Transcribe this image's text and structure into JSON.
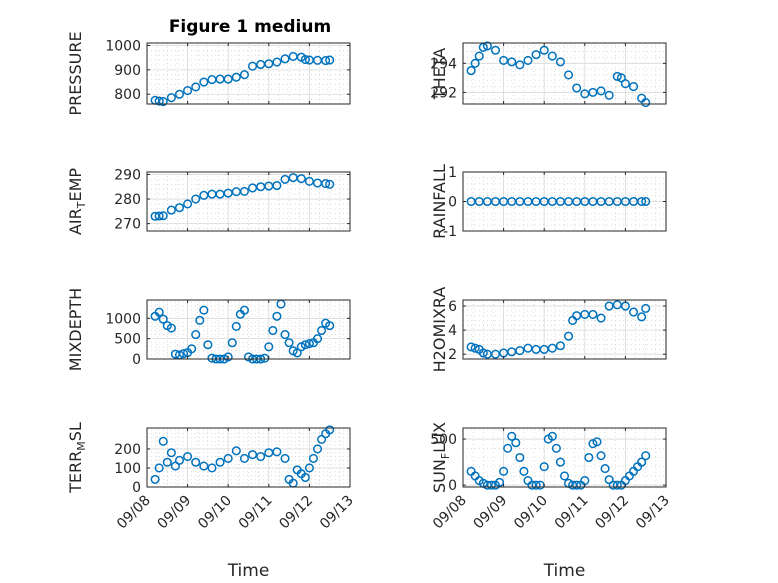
{
  "figure_title": "Figure 1 medium",
  "marker_color": "#0072BD",
  "x_axis": {
    "label": "Time",
    "ticks": [
      0,
      1,
      2,
      3,
      4,
      5
    ],
    "tick_labels": [
      "09/08",
      "09/09",
      "09/10",
      "09/11",
      "09/12",
      "09/13"
    ],
    "range": [
      0,
      5
    ]
  },
  "chart_data": [
    {
      "type": "scatter",
      "title": "Figure 1 medium",
      "ylabel_parts": [
        "PRESSURE"
      ],
      "ylim": [
        760,
        1010
      ],
      "yticks": [
        800,
        900,
        1000
      ],
      "ytick_labels": [
        "800",
        "900",
        "1000"
      ],
      "series": [
        {
          "name": "PRESSURE",
          "x": [
            0.2,
            0.3,
            0.4,
            0.6,
            0.8,
            1.0,
            1.2,
            1.4,
            1.6,
            1.8,
            2.0,
            2.2,
            2.4,
            2.6,
            2.8,
            3.0,
            3.2,
            3.4,
            3.6,
            3.8,
            3.9,
            4.0,
            4.2,
            4.4,
            4.5
          ],
          "y": [
            775,
            772,
            770,
            786,
            800,
            815,
            830,
            850,
            860,
            862,
            862,
            870,
            880,
            915,
            922,
            925,
            932,
            945,
            955,
            952,
            942,
            940,
            939,
            938,
            940
          ]
        }
      ]
    },
    {
      "type": "scatter",
      "ylabel_parts": [
        "THETA"
      ],
      "ylim": [
        291.2,
        295.4
      ],
      "yticks": [
        292,
        294
      ],
      "ytick_labels": [
        "292",
        "294"
      ],
      "series": [
        {
          "name": "THETA",
          "x": [
            0.2,
            0.3,
            0.4,
            0.5,
            0.6,
            0.8,
            1.0,
            1.2,
            1.4,
            1.6,
            1.8,
            2.0,
            2.2,
            2.4,
            2.6,
            2.8,
            3.0,
            3.2,
            3.4,
            3.6,
            3.8,
            3.9,
            4.0,
            4.2,
            4.4,
            4.5
          ],
          "y": [
            293.5,
            294.0,
            294.5,
            295.1,
            295.2,
            294.9,
            294.2,
            294.1,
            293.9,
            294.2,
            294.6,
            294.9,
            294.5,
            294.1,
            293.2,
            292.3,
            291.9,
            292.0,
            292.1,
            291.8,
            293.1,
            293.0,
            292.6,
            292.4,
            291.6,
            291.3
          ]
        }
      ]
    },
    {
      "type": "scatter",
      "ylabel_parts": [
        "AIR",
        "T",
        "EMP"
      ],
      "ylim": [
        267,
        291
      ],
      "yticks": [
        270,
        280,
        290
      ],
      "ytick_labels": [
        "270",
        "280",
        "290"
      ],
      "series": [
        {
          "name": "AIR_TEMP",
          "x": [
            0.2,
            0.3,
            0.4,
            0.6,
            0.8,
            1.0,
            1.2,
            1.4,
            1.6,
            1.8,
            2.0,
            2.2,
            2.4,
            2.6,
            2.8,
            3.0,
            3.2,
            3.4,
            3.6,
            3.8,
            4.0,
            4.2,
            4.4,
            4.5
          ],
          "y": [
            273.0,
            273.1,
            273.2,
            275.5,
            276.5,
            278.0,
            280.0,
            281.5,
            282.0,
            282.0,
            282.4,
            283.0,
            283.1,
            284.5,
            285.0,
            285.3,
            285.5,
            288.0,
            288.7,
            288.3,
            287.2,
            286.5,
            286.3,
            286.0
          ]
        }
      ]
    },
    {
      "type": "scatter",
      "ylabel_parts": [
        "RAINFALL"
      ],
      "ylim": [
        -1,
        1
      ],
      "yticks": [
        -1,
        0,
        1
      ],
      "ytick_labels": [
        "-1",
        "0",
        "1"
      ],
      "series": [
        {
          "name": "RAINFALL",
          "x": [
            0.2,
            0.4,
            0.6,
            0.8,
            1.0,
            1.2,
            1.4,
            1.6,
            1.8,
            2.0,
            2.2,
            2.4,
            2.6,
            2.8,
            3.0,
            3.2,
            3.4,
            3.6,
            3.8,
            4.0,
            4.2,
            4.4,
            4.5
          ],
          "y": [
            0,
            0,
            0,
            0,
            0,
            0,
            0,
            0,
            0,
            0,
            0,
            0,
            0,
            0,
            0,
            0,
            0,
            0,
            0,
            0,
            0,
            0,
            0
          ]
        }
      ]
    },
    {
      "type": "scatter",
      "ylabel_parts": [
        "MIXDEPTH"
      ],
      "ylim": [
        0,
        1450
      ],
      "yticks": [
        0,
        500,
        1000
      ],
      "ytick_labels": [
        "0",
        "500",
        "1000"
      ],
      "series": [
        {
          "name": "MIXDEPTH",
          "x": [
            0.2,
            0.3,
            0.4,
            0.5,
            0.6,
            0.7,
            0.8,
            0.9,
            1.0,
            1.1,
            1.2,
            1.3,
            1.4,
            1.5,
            1.6,
            1.7,
            1.8,
            1.9,
            2.0,
            2.1,
            2.2,
            2.3,
            2.4,
            2.5,
            2.6,
            2.7,
            2.8,
            2.9,
            3.0,
            3.1,
            3.2,
            3.3,
            3.4,
            3.5,
            3.6,
            3.7,
            3.8,
            3.9,
            4.0,
            4.1,
            4.2,
            4.3,
            4.4,
            4.5
          ],
          "y": [
            1050,
            1150,
            980,
            820,
            760,
            120,
            100,
            130,
            160,
            250,
            600,
            950,
            1200,
            350,
            20,
            0,
            0,
            0,
            50,
            400,
            800,
            1100,
            1200,
            50,
            0,
            0,
            0,
            20,
            300,
            700,
            1050,
            1350,
            600,
            400,
            200,
            150,
            300,
            350,
            380,
            400,
            500,
            700,
            880,
            820
          ]
        }
      ]
    },
    {
      "type": "scatter",
      "ylabel_parts": [
        "H2OMIXRA"
      ],
      "ylim": [
        1.6,
        6.5
      ],
      "yticks": [
        2,
        4,
        6
      ],
      "ytick_labels": [
        "2",
        "4",
        "6"
      ],
      "series": [
        {
          "name": "H2OMIXRA",
          "x": [
            0.2,
            0.3,
            0.4,
            0.5,
            0.6,
            0.8,
            1.0,
            1.2,
            1.4,
            1.6,
            1.8,
            2.0,
            2.2,
            2.4,
            2.6,
            2.7,
            2.8,
            3.0,
            3.2,
            3.4,
            3.6,
            3.8,
            4.0,
            4.2,
            4.4,
            4.5
          ],
          "y": [
            2.6,
            2.5,
            2.4,
            2.1,
            2.0,
            2.0,
            2.1,
            2.2,
            2.3,
            2.5,
            2.4,
            2.4,
            2.5,
            2.7,
            3.5,
            4.8,
            5.2,
            5.3,
            5.3,
            5.0,
            6.0,
            6.1,
            6.0,
            5.5,
            5.1,
            5.8
          ]
        }
      ]
    },
    {
      "type": "scatter",
      "ylabel_parts": [
        "TERR",
        "M",
        "SL"
      ],
      "ylim": [
        0,
        310
      ],
      "yticks": [
        0,
        100,
        200
      ],
      "ytick_labels": [
        "0",
        "100",
        "200"
      ],
      "series": [
        {
          "name": "TERR_MSL",
          "x": [
            0.2,
            0.3,
            0.4,
            0.5,
            0.6,
            0.7,
            0.8,
            1.0,
            1.2,
            1.4,
            1.6,
            1.8,
            2.0,
            2.2,
            2.4,
            2.6,
            2.8,
            3.0,
            3.2,
            3.4,
            3.5,
            3.6,
            3.7,
            3.8,
            3.9,
            4.0,
            4.1,
            4.2,
            4.3,
            4.4,
            4.5
          ],
          "y": [
            40,
            100,
            240,
            130,
            180,
            110,
            140,
            160,
            130,
            110,
            100,
            130,
            150,
            190,
            150,
            170,
            160,
            180,
            185,
            150,
            40,
            20,
            90,
            70,
            50,
            100,
            150,
            200,
            250,
            280,
            300
          ]
        }
      ]
    },
    {
      "type": "scatter",
      "ylabel_parts": [
        "SUN",
        "F",
        "LUX"
      ],
      "ylim": [
        -20,
        620
      ],
      "yticks": [
        0,
        500
      ],
      "ytick_labels": [
        "0",
        "500"
      ],
      "series": [
        {
          "name": "SUN_FLUX",
          "x": [
            0.2,
            0.3,
            0.4,
            0.5,
            0.6,
            0.7,
            0.8,
            0.9,
            1.0,
            1.1,
            1.2,
            1.3,
            1.4,
            1.5,
            1.6,
            1.7,
            1.8,
            1.9,
            2.0,
            2.1,
            2.2,
            2.3,
            2.4,
            2.5,
            2.6,
            2.7,
            2.8,
            2.9,
            3.0,
            3.1,
            3.2,
            3.3,
            3.4,
            3.5,
            3.6,
            3.7,
            3.8,
            3.9,
            4.0,
            4.1,
            4.2,
            4.3,
            4.4,
            4.5
          ],
          "y": [
            150,
            100,
            50,
            20,
            0,
            0,
            0,
            30,
            150,
            400,
            530,
            460,
            300,
            150,
            50,
            0,
            0,
            0,
            200,
            500,
            530,
            400,
            250,
            100,
            20,
            0,
            0,
            0,
            50,
            300,
            450,
            470,
            320,
            180,
            60,
            0,
            0,
            0,
            50,
            100,
            150,
            200,
            250,
            320
          ]
        }
      ]
    }
  ]
}
